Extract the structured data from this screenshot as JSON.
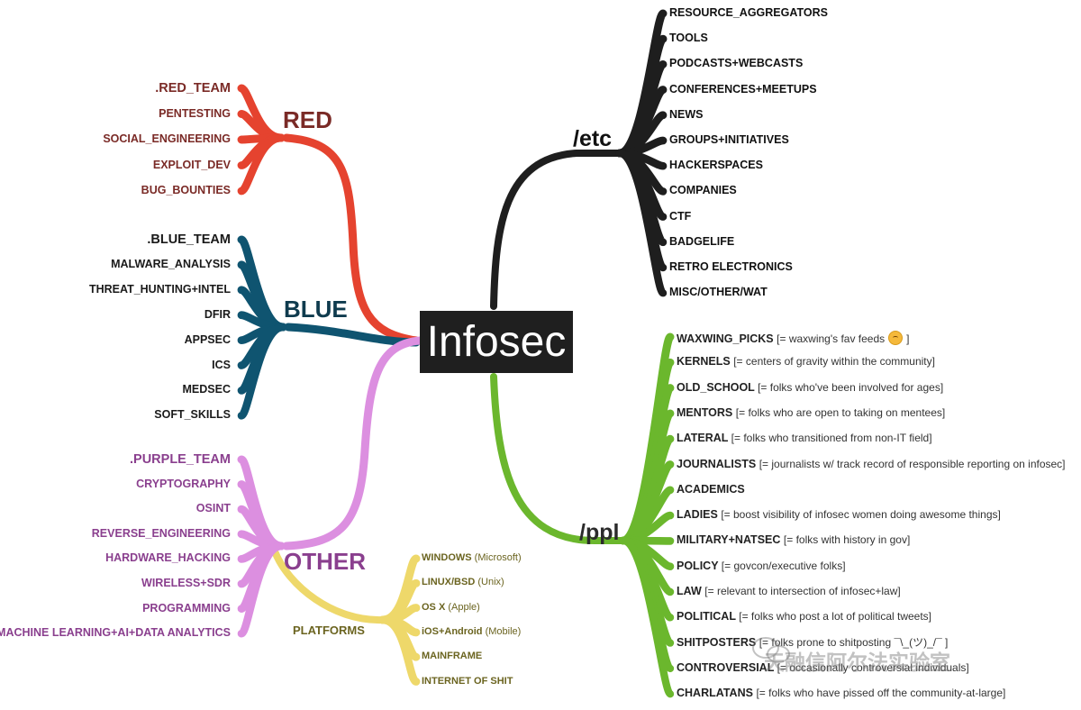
{
  "center": {
    "title": "Infosec"
  },
  "categories": {
    "red": "RED",
    "blue": "BLUE",
    "other": "OTHER",
    "platforms": "PLATFORMS",
    "etc": "/etc",
    "ppl": "/ppl"
  },
  "colors": {
    "red": "#e5432f",
    "blue": "#0f5470",
    "purple": "#dc8fe0",
    "platforms": "#eed86a",
    "etc": "#1e1e1e",
    "ppl": "#6bb72d"
  },
  "red_items": [
    ".RED_TEAM",
    "PENTESTING",
    "SOCIAL_ENGINEERING",
    "EXPLOIT_DEV",
    "BUG_BOUNTIES"
  ],
  "blue_items": [
    ".BLUE_TEAM",
    "MALWARE_ANALYSIS",
    "THREAT_HUNTING+INTEL",
    "DFIR",
    "APPSEC",
    "ICS",
    "MEDSEC",
    "SOFT_SKILLS"
  ],
  "other_items": [
    ".PURPLE_TEAM",
    "CRYPTOGRAPHY",
    "OSINT",
    "REVERSE_ENGINEERING",
    "HARDWARE_HACKING",
    "WIRELESS+SDR",
    "PROGRAMMING",
    "MACHINE LEARNING+AI+DATA ANALYTICS"
  ],
  "platform_items": [
    {
      "name": "WINDOWS",
      "note": "(Microsoft)"
    },
    {
      "name": "LINUX/BSD",
      "note": "(Unix)"
    },
    {
      "name": "OS X",
      "note": "(Apple)"
    },
    {
      "name": "iOS+Android",
      "note": "(Mobile)"
    },
    {
      "name": "MAINFRAME",
      "note": ""
    },
    {
      "name": "INTERNET OF SHIT",
      "note": ""
    }
  ],
  "etc_items": [
    "RESOURCE_AGGREGATORS",
    "TOOLS",
    "PODCASTS+WEBCASTS",
    "CONFERENCES+MEETUPS",
    "NEWS",
    "GROUPS+INITIATIVES",
    "HACKERSPACES",
    "COMPANIES",
    "CTF",
    "BADGELIFE",
    "RETRO ELECTRONICS",
    "MISC/OTHER/WAT"
  ],
  "ppl_items": [
    {
      "name": "WAXWING_PICKS",
      "note": "[= waxwing's fav feeds",
      "note_end": "]",
      "emoji": "upside-down-face-icon"
    },
    {
      "name": "KERNELS",
      "note": "[= centers of gravity within the community]"
    },
    {
      "name": "OLD_SCHOOL",
      "note": "[= folks who've been involved for ages]"
    },
    {
      "name": "MENTORS",
      "note": "[= folks who are open to taking on mentees]"
    },
    {
      "name": "LATERAL",
      "note": "[= folks who transitioned from non-IT field]"
    },
    {
      "name": "JOURNALISTS",
      "note": "[= journalists w/ track record of responsible reporting on infosec]"
    },
    {
      "name": "ACADEMICS",
      "note": ""
    },
    {
      "name": "LADIES",
      "note": "[= boost visibility of infosec women doing awesome things]"
    },
    {
      "name": "MILITARY+NATSEC",
      "note": "[= folks with history in gov]"
    },
    {
      "name": "POLICY",
      "note": "[= govcon/executive folks]"
    },
    {
      "name": "LAW",
      "note": "[= relevant to intersection of infosec+law]"
    },
    {
      "name": "POLITICAL",
      "note": "[= folks who post a lot of political tweets]"
    },
    {
      "name": "SHITPOSTERS",
      "note": "[= folks prone to shitposting ¯\\_(ツ)_/¯ ]"
    },
    {
      "name": "CONTROVERSIAL",
      "note": "[= occasionally controversial individuals]"
    },
    {
      "name": "CHARLATANS",
      "note": "[= folks who have pissed off the community-at-large]"
    }
  ],
  "watermark": {
    "text": "天融信阿尔法实验室"
  }
}
